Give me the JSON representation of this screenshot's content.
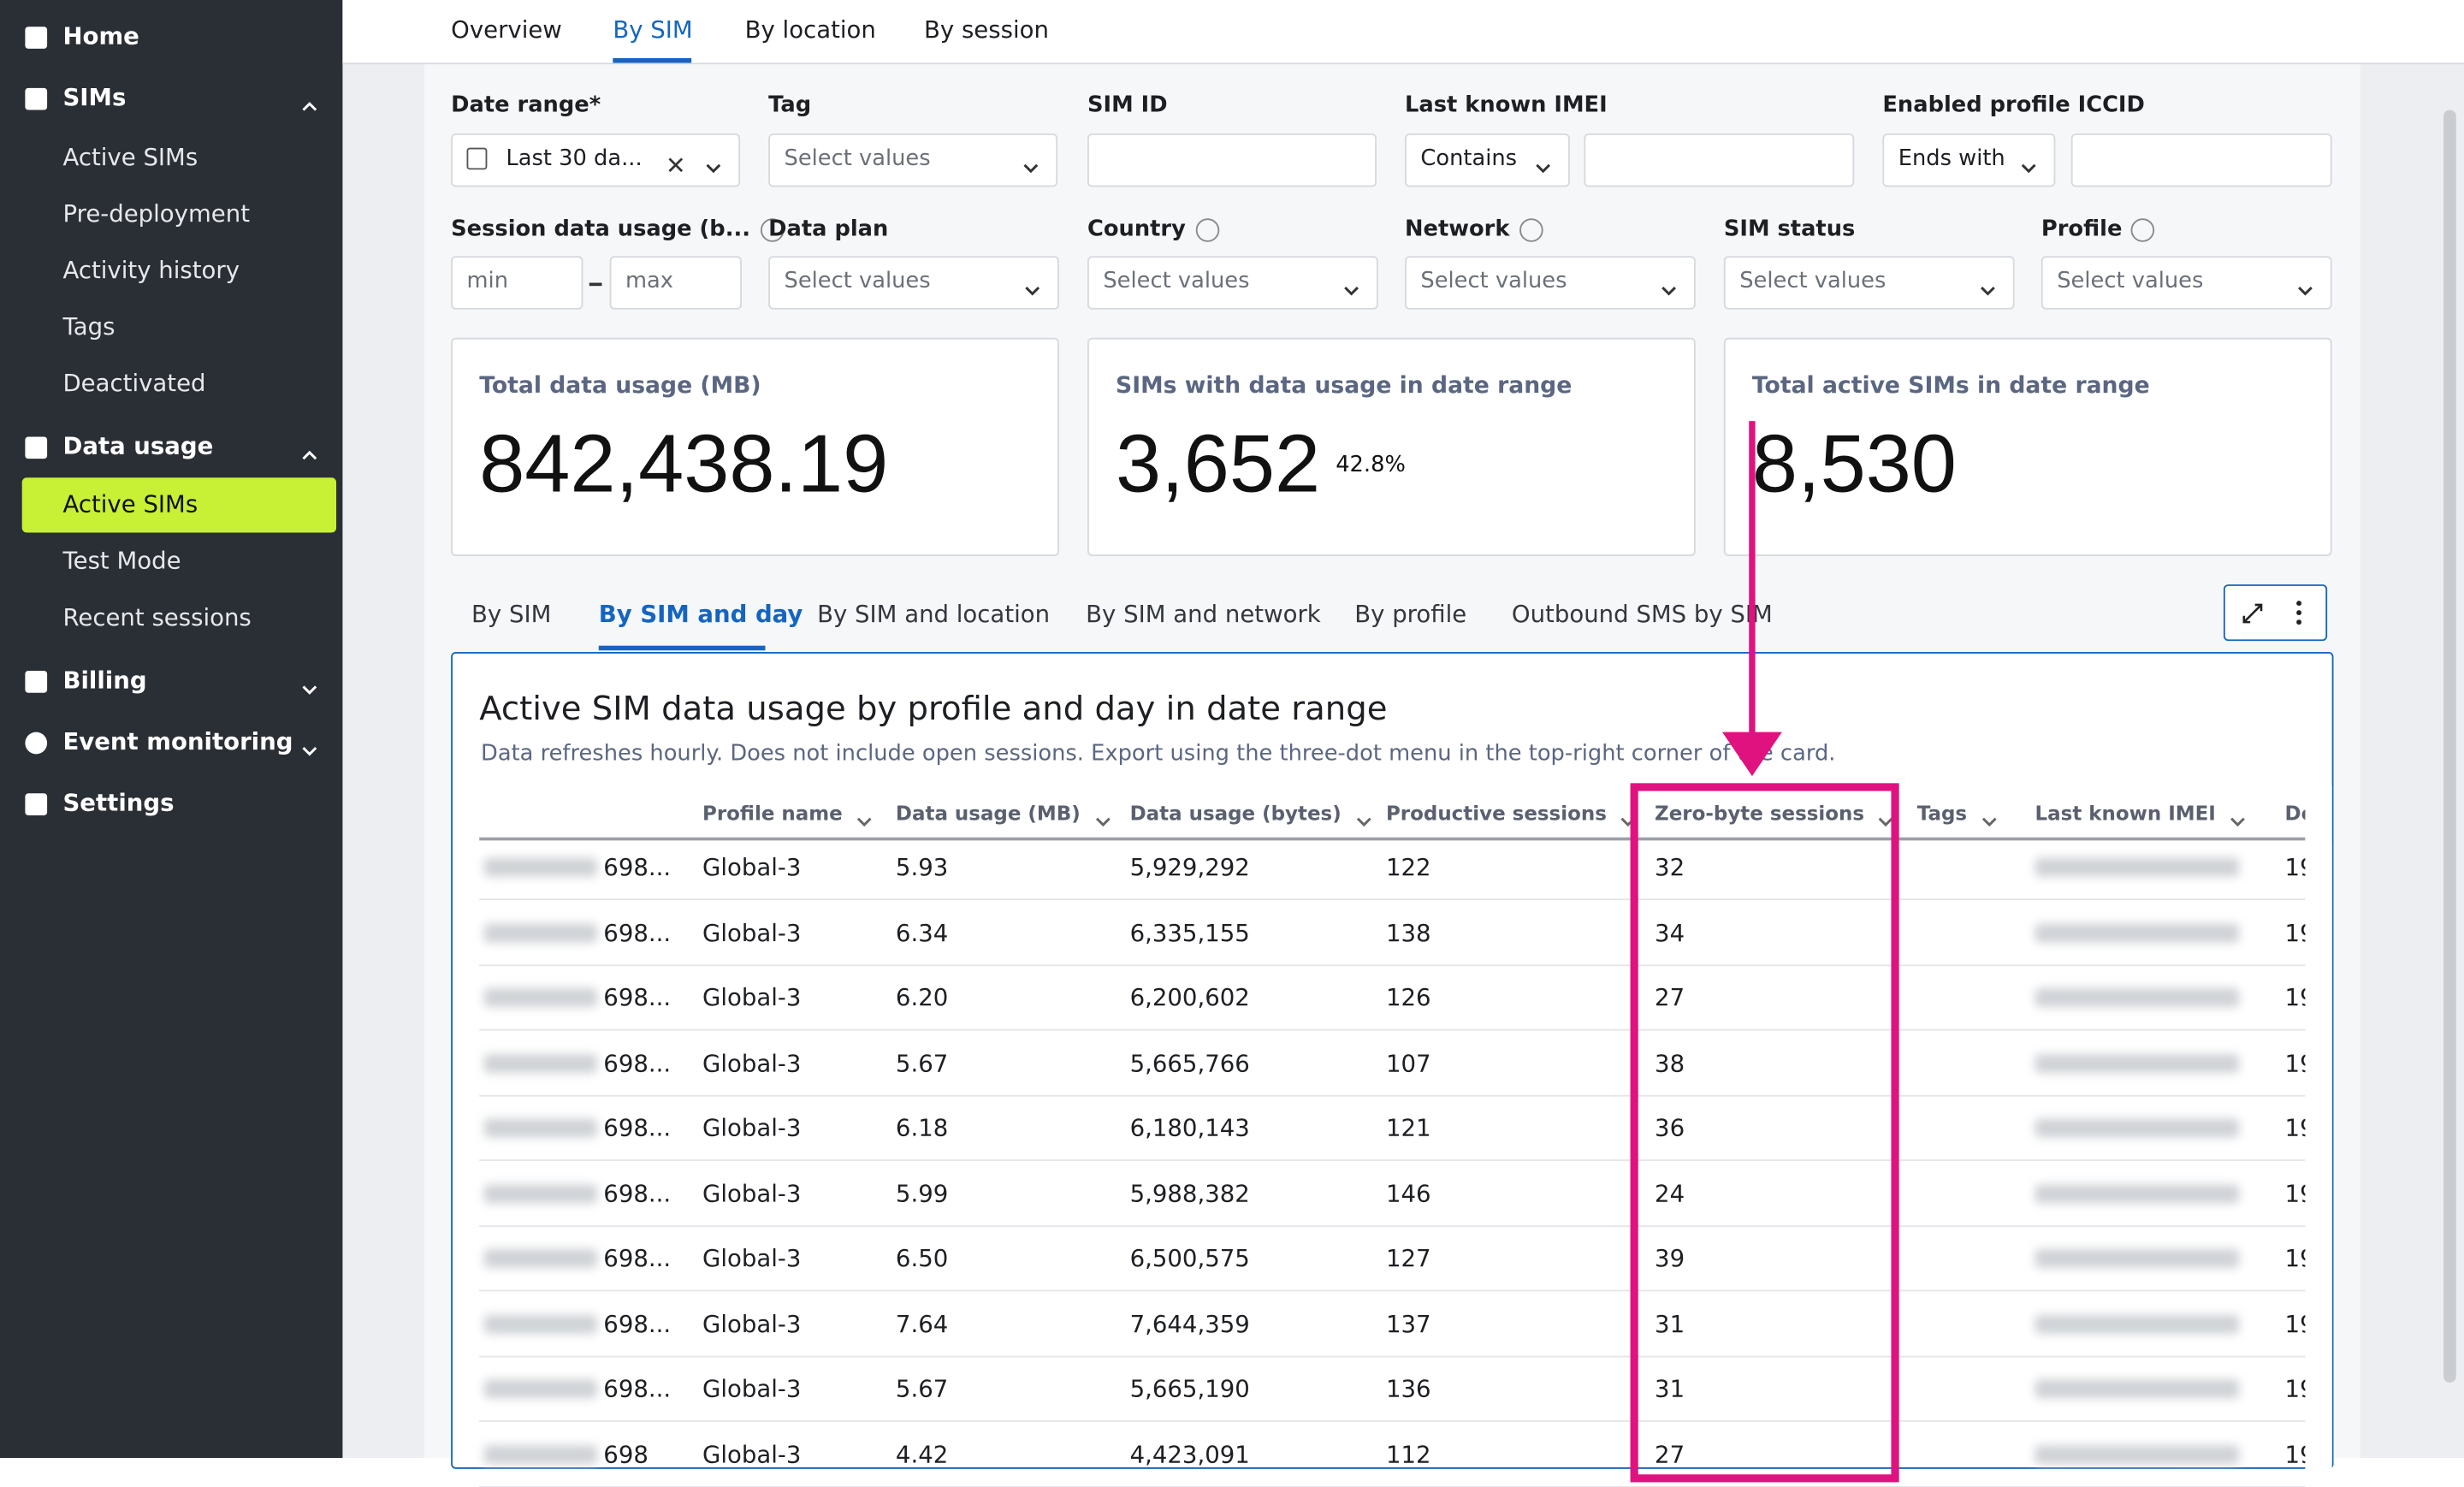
{
  "sidebar": {
    "items": [
      {
        "label": "Home"
      },
      {
        "label": "SIMs",
        "children": [
          "Active SIMs",
          "Pre-deployment",
          "Activity history",
          "Tags",
          "Deactivated"
        ]
      },
      {
        "label": "Data usage",
        "children": [
          "Active SIMs",
          "Test Mode",
          "Recent sessions"
        ]
      },
      {
        "label": "Billing"
      },
      {
        "label": "Event monitoring"
      },
      {
        "label": "Settings"
      }
    ]
  },
  "tabs": [
    "Overview",
    "By SIM",
    "By location",
    "By session"
  ],
  "filters": {
    "date_range": {
      "label": "Date range*",
      "value": "Last 30 da..."
    },
    "tag": {
      "label": "Tag",
      "placeholder": "Select values"
    },
    "sim_id": {
      "label": "SIM ID"
    },
    "imei": {
      "label": "Last known IMEI",
      "operator": "Contains"
    },
    "iccid": {
      "label": "Enabled profile ICCID",
      "operator": "Ends with"
    },
    "session_usage": {
      "label": "Session data usage (b...",
      "min": "min",
      "max": "max"
    },
    "data_plan": {
      "label": "Data plan",
      "placeholder": "Select values"
    },
    "country": {
      "label": "Country",
      "placeholder": "Select values"
    },
    "network": {
      "label": "Network",
      "placeholder": "Select values"
    },
    "sim_status": {
      "label": "SIM status",
      "placeholder": "Select values"
    },
    "profile": {
      "label": "Profile",
      "placeholder": "Select values"
    }
  },
  "stats": [
    {
      "label": "Total data usage (MB)",
      "value": "842,438.19"
    },
    {
      "label": "SIMs with data usage in date range",
      "value": "3,652",
      "extra": "42.8%"
    },
    {
      "label": "Total active SIMs in date range",
      "value": "8,530"
    }
  ],
  "subtabs": [
    "By SIM",
    "By SIM and day",
    "By SIM and location",
    "By SIM and network",
    "By profile",
    "Outbound SMS by SIM"
  ],
  "table": {
    "title": "Active SIM data usage by profile and day in date range",
    "subtitle": "Data refreshes hourly. Does not include open sessions. Export using the three-dot menu in the top-right corner of the card.",
    "columns": [
      "Profile name",
      "Data usage (MB)",
      "Data usage (bytes)",
      "Productive sessions",
      "Zero-byte sessions",
      "Tags",
      "Last known IMEI",
      "De"
    ],
    "rows": [
      [
        "698...",
        "Global-3",
        "5.93",
        "5,929,292",
        "122",
        "32",
        "19"
      ],
      [
        "698...",
        "Global-3",
        "6.34",
        "6,335,155",
        "138",
        "34",
        "19"
      ],
      [
        "698...",
        "Global-3",
        "6.20",
        "6,200,602",
        "126",
        "27",
        "19"
      ],
      [
        "698...",
        "Global-3",
        "5.67",
        "5,665,766",
        "107",
        "38",
        "19"
      ],
      [
        "698...",
        "Global-3",
        "6.18",
        "6,180,143",
        "121",
        "36",
        "19"
      ],
      [
        "698...",
        "Global-3",
        "5.99",
        "5,988,382",
        "146",
        "24",
        "19"
      ],
      [
        "698...",
        "Global-3",
        "6.50",
        "6,500,575",
        "127",
        "39",
        "19"
      ],
      [
        "698...",
        "Global-3",
        "7.64",
        "7,644,359",
        "137",
        "31",
        "19"
      ],
      [
        "698...",
        "Global-3",
        "5.67",
        "5,665,190",
        "136",
        "31",
        "19"
      ],
      [
        "698",
        "Global-3",
        "4.42",
        "4,423,091",
        "112",
        "27",
        "19"
      ]
    ]
  }
}
